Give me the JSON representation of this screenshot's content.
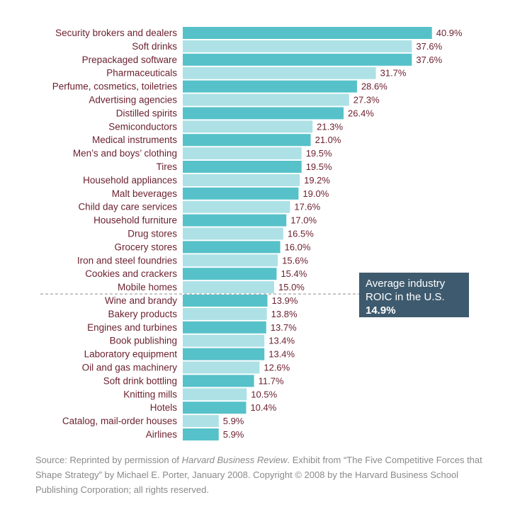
{
  "chart_data": {
    "type": "bar",
    "orientation": "horizontal",
    "categories": [
      "Security brokers and dealers",
      "Soft drinks",
      "Prepackaged software",
      "Pharmaceuticals",
      "Perfume, cosmetics, toiletries",
      "Advertising agencies",
      "Distilled spirits",
      "Semiconductors",
      "Medical instruments",
      "Men’s and boys’ clothing",
      "Tires",
      "Household appliances",
      "Malt beverages",
      "Child day care services",
      "Household furniture",
      "Drug stores",
      "Grocery stores",
      "Iron and steel foundries",
      "Cookies and crackers",
      "Mobile homes",
      "Wine and brandy",
      "Bakery products",
      "Engines and turbines",
      "Book publishing",
      "Laboratory equipment",
      "Oil and gas machinery",
      "Soft drink bottling",
      "Knitting mills",
      "Hotels",
      "Catalog, mail-order houses",
      "Airlines"
    ],
    "values": [
      40.9,
      37.6,
      37.6,
      31.7,
      28.6,
      27.3,
      26.4,
      21.3,
      21.0,
      19.5,
      19.5,
      19.2,
      19.0,
      17.6,
      17.0,
      16.5,
      16.0,
      15.6,
      15.4,
      15.0,
      13.9,
      13.8,
      13.7,
      13.4,
      13.4,
      12.6,
      11.7,
      10.5,
      10.4,
      5.9,
      5.9
    ],
    "value_labels": [
      "40.9%",
      "37.6%",
      "37.6%",
      "31.7%",
      "28.6%",
      "27.3%",
      "26.4%",
      "21.3%",
      "21.0%",
      "19.5%",
      "19.5%",
      "19.2%",
      "19.0%",
      "17.6%",
      "17.0%",
      "16.5%",
      "16.0%",
      "15.6%",
      "15.4%",
      "15.0%",
      "13.9%",
      "13.8%",
      "13.7%",
      "13.4%",
      "13.4%",
      "12.6%",
      "11.7%",
      "10.5%",
      "10.4%",
      "5.9%",
      "5.9%"
    ],
    "unit": "%",
    "xlim": [
      0,
      41
    ],
    "average": 14.9,
    "colors": {
      "dark": "#56c1c9",
      "light": "#ade1e6",
      "text": "#6b1f2e",
      "avg_box": "#3e5a6e"
    }
  },
  "average_box": {
    "line1": "Average industry",
    "line2": "ROIC in the U.S.",
    "value": "14.9%"
  },
  "source": {
    "prefix": "Source: Reprinted by permission of ",
    "publication": "Harvard Business Review",
    "rest": ". Exhibit from “The Five Competitive Forces that Shape Strategy” by Michael E. Porter, January 2008. Copyright © 2008 by the Harvard Business School Publishing Corporation; all rights reserved."
  }
}
